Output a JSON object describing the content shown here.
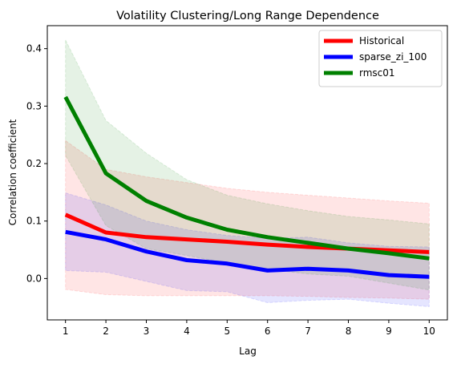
{
  "chart_data": {
    "type": "line",
    "title": "Volatility Clustering/Long Range Dependence",
    "xlabel": "Lag",
    "ylabel": "Correlation coefficient",
    "x": [
      1,
      2,
      3,
      4,
      5,
      6,
      7,
      8,
      9,
      10
    ],
    "xlim": [
      0.55,
      10.45
    ],
    "ylim": [
      -0.072,
      0.44
    ],
    "yticks": [
      0.0,
      0.1,
      0.2,
      0.3,
      0.4
    ],
    "ytick_labels": [
      "0.0",
      "0.1",
      "0.2",
      "0.3",
      "0.4"
    ],
    "xtick_labels": [
      "1",
      "2",
      "3",
      "4",
      "5",
      "6",
      "7",
      "8",
      "9",
      "10"
    ],
    "legend_position": "top-right",
    "series": [
      {
        "name": "Historical",
        "color": "#ff0000",
        "values": [
          0.111,
          0.08,
          0.072,
          0.068,
          0.064,
          0.059,
          0.055,
          0.052,
          0.049,
          0.046
        ],
        "upper": [
          0.24,
          0.19,
          0.177,
          0.167,
          0.157,
          0.15,
          0.145,
          0.14,
          0.135,
          0.131
        ],
        "lower": [
          -0.019,
          -0.028,
          -0.03,
          -0.03,
          -0.03,
          -0.03,
          -0.031,
          -0.033,
          -0.034,
          -0.036
        ]
      },
      {
        "name": "sparse_zi_100",
        "color": "#0000ff",
        "values": [
          0.081,
          0.068,
          0.047,
          0.032,
          0.026,
          0.014,
          0.017,
          0.014,
          0.006,
          0.003
        ],
        "upper": [
          0.149,
          0.128,
          0.1,
          0.085,
          0.075,
          0.07,
          0.072,
          0.062,
          0.056,
          0.055
        ],
        "lower": [
          0.014,
          0.011,
          -0.005,
          -0.021,
          -0.023,
          -0.042,
          -0.038,
          -0.036,
          -0.043,
          -0.049
        ]
      },
      {
        "name": "rmsc01",
        "color": "#008000",
        "values": [
          0.316,
          0.183,
          0.135,
          0.106,
          0.085,
          0.072,
          0.062,
          0.052,
          0.044,
          0.035
        ],
        "upper": [
          0.415,
          0.275,
          0.218,
          0.172,
          0.145,
          0.13,
          0.118,
          0.108,
          0.102,
          0.095
        ],
        "lower": [
          0.214,
          0.092,
          0.052,
          0.04,
          0.027,
          0.016,
          0.008,
          0.004,
          -0.008,
          -0.02
        ]
      }
    ]
  }
}
